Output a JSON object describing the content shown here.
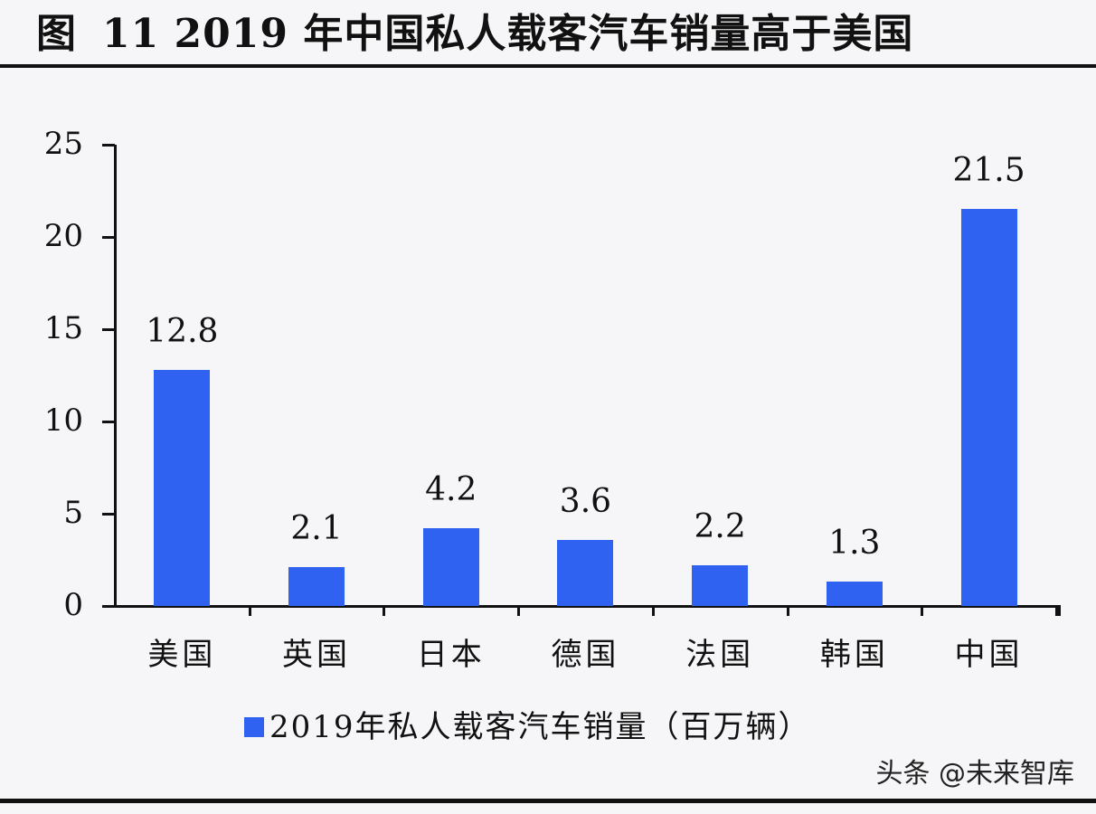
{
  "header": {
    "figure_label": "图",
    "title": "11 2019 年中国私人载客汽车销量高于美国"
  },
  "legend": {
    "label": "2019年私人载客汽车销量（百万辆）",
    "color": "#2F62F0"
  },
  "watermark": "头条 @未来智库",
  "chart_data": {
    "type": "bar",
    "title": "图 11 2019 年中国私人载客汽车销量高于美国",
    "xlabel": "",
    "ylabel": "",
    "categories": [
      "美国",
      "英国",
      "日本",
      "德国",
      "法国",
      "韩国",
      "中国"
    ],
    "series": [
      {
        "name": "2019年私人载客汽车销量（百万辆）",
        "values": [
          12.8,
          2.1,
          4.2,
          3.6,
          2.2,
          1.3,
          21.5
        ],
        "color": "#2F62F0"
      }
    ],
    "data_labels": [
      "12.8",
      "2.1",
      "4.2",
      "3.6",
      "2.2",
      "1.3",
      "21.5"
    ],
    "ylim": [
      0,
      25
    ],
    "yticks": [
      "0",
      "5",
      "10",
      "15",
      "20",
      "25"
    ],
    "grid": false,
    "legend_position": "bottom"
  }
}
